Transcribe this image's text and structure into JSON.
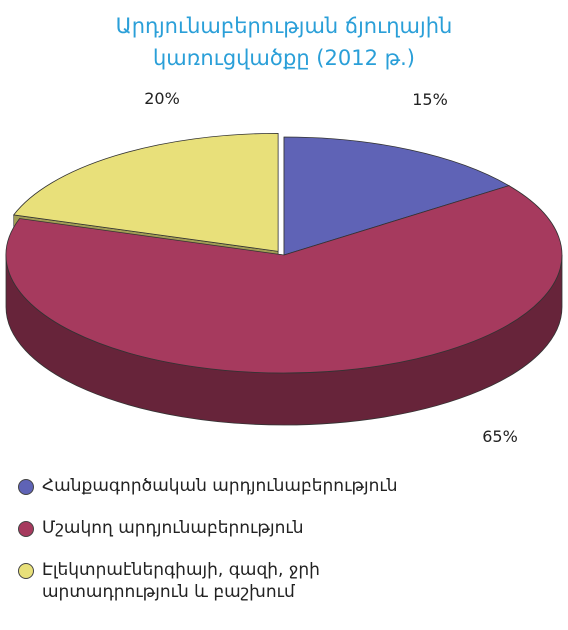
{
  "chart_data": {
    "type": "pie",
    "title_lines": [
      "Արդյունաբերության ճյուղային",
      "կառուցվածքը (2012 թ.)"
    ],
    "slices": [
      {
        "label": "Հանքագործական արդյունաբերություն",
        "value": 15,
        "value_label": "15%",
        "color": "#5f63b6"
      },
      {
        "label": "Մշակող արդյունաբերություն",
        "value": 65,
        "value_label": "65%",
        "color": "#a63a5e"
      },
      {
        "label": "Էլեկտրաէներգիայի, գազի, ջրի\nարտադրություն և բաշխում",
        "value": 20,
        "value_label": "20%",
        "color": "#e8e07a"
      }
    ],
    "legend_position": "bottom"
  }
}
